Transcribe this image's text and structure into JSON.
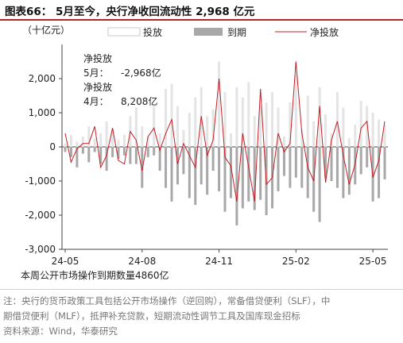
{
  "header": {
    "title": "图表66： 5月至今，央行净收回流动性 2,968 亿元"
  },
  "chart_data": {
    "type": "bar+line",
    "unit_label": "（十亿元）",
    "ylim": [
      -3000,
      3000
    ],
    "yticks": [
      "2,000",
      "1,000",
      "0",
      "-1,000",
      "-2,000",
      "-3,000"
    ],
    "ytick_values": [
      2000,
      1000,
      0,
      -1000,
      -2000,
      -3000
    ],
    "xticks": [
      "24-05",
      "24-08",
      "24-11",
      "25-02",
      "25-05"
    ],
    "xtick_positions": [
      0,
      13,
      26,
      39,
      52
    ],
    "legend": [
      "投放",
      "到期",
      "净投放"
    ],
    "colors": {
      "inject": "#e4e4e4",
      "mature": "#a8a8a8",
      "net": "#c01f26",
      "axis": "#444444"
    },
    "inject": [
      100,
      350,
      150,
      300,
      600,
      250,
      400,
      750,
      550,
      200,
      350,
      900,
      1150,
      600,
      300,
      1200,
      400,
      1700,
      1850,
      1200,
      500,
      1000,
      1450,
      1750,
      900,
      1100,
      2500,
      1600,
      400,
      1750,
      1450,
      1900,
      900,
      1200,
      1300,
      1600,
      1150,
      300,
      1300,
      2100,
      500,
      1500,
      750,
      1750,
      950,
      400,
      1600,
      1150,
      250,
      650,
      1350,
      1200,
      1000,
      800,
      650
    ],
    "mature": [
      -150,
      -300,
      -600,
      -200,
      -450,
      -150,
      -500,
      -700,
      -300,
      -350,
      -250,
      -500,
      -500,
      -1200,
      -300,
      -250,
      -700,
      -1200,
      -1600,
      -1100,
      -800,
      -1500,
      -1700,
      -1100,
      -1400,
      -700,
      -1300,
      -1900,
      -1500,
      -2300,
      -1800,
      -1600,
      -1850,
      -1550,
      -2000,
      -1800,
      -1300,
      -850,
      -1200,
      -900,
      -1200,
      -1500,
      -1900,
      -2200,
      -900,
      -1000,
      -1200,
      -1500,
      -1400,
      -1100,
      -800,
      -600,
      -1600,
      -1500,
      -950
    ],
    "net": [
      400,
      -450,
      -50,
      100,
      100,
      600,
      -600,
      -250,
      550,
      -400,
      -500,
      450,
      200,
      -700,
      300,
      550,
      -100,
      400,
      800,
      -500,
      100,
      -250,
      -600,
      900,
      -250,
      200,
      2000,
      -300,
      -550,
      -1600,
      400,
      -600,
      -1600,
      1700,
      -1100,
      -900,
      400,
      -150,
      100,
      2500,
      400,
      -600,
      -1000,
      1200,
      -1050,
      200,
      750,
      -250,
      -1100,
      -500,
      550,
      750,
      -900,
      -400,
      750
    ],
    "annotations": [
      "净投放",
      "5月：",
      "-2,968亿",
      "净投放",
      "4月：",
      "8,208亿"
    ]
  },
  "footnote": "本周公开市场操作到期数量4860亿",
  "notes": [
    "注：央行的货币政策工具包括公开市场操作（逆回购），常备借贷便利（SLF），中",
    "期借贷便利（MLF），抵押补充贷款，短期流动性调节工具及国库现金招标",
    "资料来源：Wind，华泰研究"
  ]
}
